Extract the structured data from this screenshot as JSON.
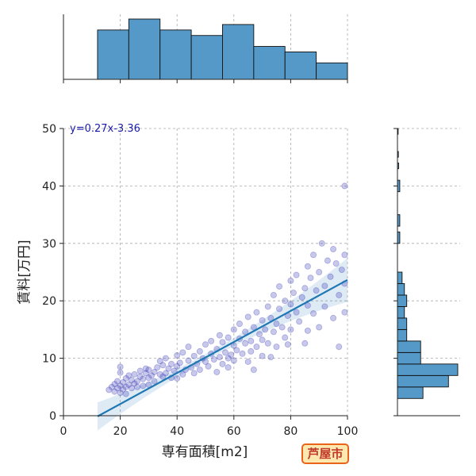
{
  "badge": {
    "text": "芦屋市",
    "bg": "#fde9b0",
    "border": "#e8641a",
    "color": "#c0392b"
  },
  "chart_data": {
    "type": "scatter",
    "xlabel": "専有面積[m2]",
    "ylabel": "賃料[万円]",
    "xlim": [
      0,
      100
    ],
    "ylim": [
      0,
      50
    ],
    "xticks": [
      0,
      20,
      40,
      60,
      80,
      100
    ],
    "yticks": [
      0,
      10,
      20,
      30,
      40,
      50
    ],
    "grid": true,
    "regression": {
      "label": "y=0.27x-3.36",
      "slope": 0.27,
      "intercept": -3.36,
      "x_range": [
        12,
        100
      ],
      "color": "#1f77b4"
    },
    "point_color": "#3a3ab8",
    "hist_color": "#5499c7",
    "points": [
      [
        16,
        4.5
      ],
      [
        17,
        5.0
      ],
      [
        18,
        4.2
      ],
      [
        18,
        5.5
      ],
      [
        19,
        4.8
      ],
      [
        19,
        6.0
      ],
      [
        20,
        5.2
      ],
      [
        20,
        4.0
      ],
      [
        20,
        7.5
      ],
      [
        20,
        8.5
      ],
      [
        21,
        5.8
      ],
      [
        21,
        4.6
      ],
      [
        22,
        6.5
      ],
      [
        22,
        5.0
      ],
      [
        22,
        3.8
      ],
      [
        23,
        5.4
      ],
      [
        23,
        7.0
      ],
      [
        24,
        6.2
      ],
      [
        24,
        4.8
      ],
      [
        25,
        5.6
      ],
      [
        25,
        7.2
      ],
      [
        26,
        6.0
      ],
      [
        26,
        5.0
      ],
      [
        27,
        6.8
      ],
      [
        27,
        7.8
      ],
      [
        28,
        6.4
      ],
      [
        28,
        5.2
      ],
      [
        29,
        7.4
      ],
      [
        29,
        8.2
      ],
      [
        30,
        6.6
      ],
      [
        30,
        5.4
      ],
      [
        30,
        8.0
      ],
      [
        31,
        7.0
      ],
      [
        32,
        7.6
      ],
      [
        32,
        6.0
      ],
      [
        33,
        8.4
      ],
      [
        34,
        7.2
      ],
      [
        34,
        9.5
      ],
      [
        35,
        6.8
      ],
      [
        35,
        8.8
      ],
      [
        36,
        7.4
      ],
      [
        36,
        10.0
      ],
      [
        37,
        8.2
      ],
      [
        38,
        9.0
      ],
      [
        38,
        6.6
      ],
      [
        39,
        7.8
      ],
      [
        40,
        8.6
      ],
      [
        40,
        10.5
      ],
      [
        40,
        6.5
      ],
      [
        41,
        9.2
      ],
      [
        42,
        7.2
      ],
      [
        42,
        11.0
      ],
      [
        43,
        8.0
      ],
      [
        44,
        9.6
      ],
      [
        44,
        12.0
      ],
      [
        45,
        8.4
      ],
      [
        46,
        10.4
      ],
      [
        46,
        7.4
      ],
      [
        47,
        9.0
      ],
      [
        48,
        11.2
      ],
      [
        48,
        8.0
      ],
      [
        49,
        10.0
      ],
      [
        50,
        9.4
      ],
      [
        50,
        12.4
      ],
      [
        51,
        8.6
      ],
      [
        52,
        10.8
      ],
      [
        52,
        13.0
      ],
      [
        53,
        9.8
      ],
      [
        54,
        11.6
      ],
      [
        54,
        7.6
      ],
      [
        55,
        10.2
      ],
      [
        56,
        12.8
      ],
      [
        56,
        9.0
      ],
      [
        57,
        11.0
      ],
      [
        58,
        13.6
      ],
      [
        58,
        8.4
      ],
      [
        59,
        10.6
      ],
      [
        60,
        12.2
      ],
      [
        60,
        15.0
      ],
      [
        60,
        9.6
      ],
      [
        61,
        11.4
      ],
      [
        62,
        13.4
      ],
      [
        62,
        16.0
      ],
      [
        63,
        10.8
      ],
      [
        64,
        12.6
      ],
      [
        64,
        14.6
      ],
      [
        65,
        9.4
      ],
      [
        65,
        17.2
      ],
      [
        66,
        13.0
      ],
      [
        66,
        11.2
      ],
      [
        67,
        15.4
      ],
      [
        68,
        12.0
      ],
      [
        68,
        18.0
      ],
      [
        69,
        14.2
      ],
      [
        70,
        13.2
      ],
      [
        70,
        16.6
      ],
      [
        70,
        10.4
      ],
      [
        71,
        15.0
      ],
      [
        72,
        19.0
      ],
      [
        72,
        12.6
      ],
      [
        73,
        17.0
      ],
      [
        74,
        14.6
      ],
      [
        74,
        21.0
      ],
      [
        75,
        16.0
      ],
      [
        75,
        12.0
      ],
      [
        76,
        18.6
      ],
      [
        76,
        22.5
      ],
      [
        77,
        15.4
      ],
      [
        78,
        20.0
      ],
      [
        78,
        13.6
      ],
      [
        79,
        17.4
      ],
      [
        80,
        19.4
      ],
      [
        80,
        23.5
      ],
      [
        80,
        15.0
      ],
      [
        81,
        21.4
      ],
      [
        82,
        18.0
      ],
      [
        82,
        24.5
      ],
      [
        83,
        16.4
      ],
      [
        84,
        20.6
      ],
      [
        85,
        12.6
      ],
      [
        85,
        22.2
      ],
      [
        86,
        19.2
      ],
      [
        86,
        26.0
      ],
      [
        87,
        24.0
      ],
      [
        88,
        17.8
      ],
      [
        88,
        28.0
      ],
      [
        89,
        21.8
      ],
      [
        90,
        25.0
      ],
      [
        90,
        15.4
      ],
      [
        91,
        30.0
      ],
      [
        92,
        22.6
      ],
      [
        92,
        19.0
      ],
      [
        93,
        27.0
      ],
      [
        94,
        24.2
      ],
      [
        95,
        17.0
      ],
      [
        95,
        29.0
      ],
      [
        96,
        26.5
      ],
      [
        97,
        12.0
      ],
      [
        97,
        21.0
      ],
      [
        98,
        25.4
      ],
      [
        99,
        40.0
      ],
      [
        99,
        28.0
      ],
      [
        99,
        23.0
      ],
      [
        99,
        18.0
      ],
      [
        58,
        10.0
      ],
      [
        55,
        14.0
      ],
      [
        67,
        8.0
      ],
      [
        73,
        10.2
      ],
      [
        79,
        12.4
      ],
      [
        86,
        14.8
      ]
    ],
    "hist_x": {
      "bins": [
        [
          12,
          23,
          9
        ],
        [
          23,
          34,
          11
        ],
        [
          34,
          45,
          9
        ],
        [
          45,
          56,
          8
        ],
        [
          56,
          67,
          10
        ],
        [
          67,
          78,
          6
        ],
        [
          78,
          89,
          5
        ],
        [
          89,
          100,
          3
        ]
      ]
    },
    "hist_y": {
      "bins": [
        [
          3,
          5,
          11
        ],
        [
          5,
          7,
          22
        ],
        [
          7,
          9,
          26
        ],
        [
          9,
          11,
          10
        ],
        [
          11,
          13,
          10
        ],
        [
          13,
          15,
          4
        ],
        [
          15,
          17,
          4
        ],
        [
          17,
          19,
          3
        ],
        [
          19,
          21,
          4
        ],
        [
          21,
          23,
          3
        ],
        [
          23,
          25,
          2
        ],
        [
          30,
          32,
          1
        ],
        [
          33,
          35,
          1
        ],
        [
          39,
          41,
          1
        ],
        [
          43,
          44,
          0.5
        ],
        [
          45,
          46,
          0.4
        ],
        [
          49,
          50,
          0.3
        ]
      ]
    }
  }
}
